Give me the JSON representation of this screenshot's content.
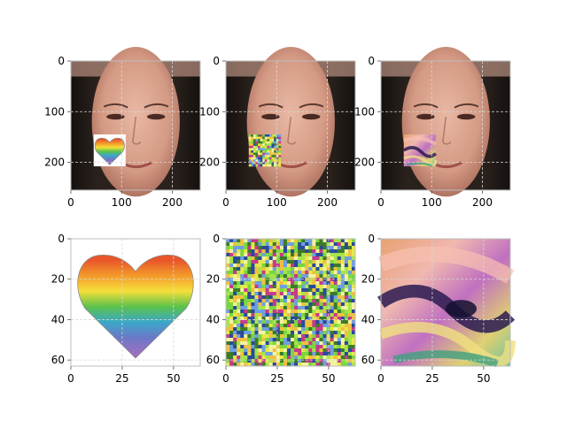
{
  "chart_data": [
    {
      "type": "image",
      "content": "face photo with rainbow heart patch",
      "xlim": [
        0,
        255
      ],
      "ylim": [
        255,
        0
      ],
      "xticks": [
        "0",
        "100",
        "200"
      ],
      "yticks": [
        "0",
        "100",
        "200"
      ],
      "patch": {
        "kind": "rainbow-heart",
        "x_range": [
          45,
          108
        ],
        "y_range": [
          145,
          208
        ]
      },
      "grid": true
    },
    {
      "type": "image",
      "content": "face photo with random-noise patch",
      "xlim": [
        0,
        255
      ],
      "ylim": [
        255,
        0
      ],
      "xticks": [
        "0",
        "100",
        "200"
      ],
      "yticks": [
        "0",
        "100",
        "200"
      ],
      "patch": {
        "kind": "noise",
        "x_range": [
          45,
          108
        ],
        "y_range": [
          145,
          208
        ]
      },
      "grid": true
    },
    {
      "type": "image",
      "content": "face photo with optimized adversarial patch",
      "xlim": [
        0,
        255
      ],
      "ylim": [
        255,
        0
      ],
      "xticks": [
        "0",
        "100",
        "200"
      ],
      "yticks": [
        "0",
        "100",
        "200"
      ],
      "patch": {
        "kind": "swirl",
        "x_range": [
          45,
          108
        ],
        "y_range": [
          145,
          208
        ]
      },
      "grid": true
    },
    {
      "type": "image",
      "content": "rainbow heart patch",
      "xlim": [
        0,
        63
      ],
      "ylim": [
        63,
        0
      ],
      "xticks": [
        "0",
        "25",
        "50"
      ],
      "yticks": [
        "0",
        "20",
        "40",
        "60"
      ],
      "grid": true
    },
    {
      "type": "image",
      "content": "random noise patch",
      "xlim": [
        0,
        63
      ],
      "ylim": [
        63,
        0
      ],
      "xticks": [
        "0",
        "25",
        "50"
      ],
      "yticks": [
        "0",
        "20",
        "40",
        "60"
      ],
      "grid": true
    },
    {
      "type": "image",
      "content": "optimized swirl patch",
      "xlim": [
        0,
        63
      ],
      "ylim": [
        63,
        0
      ],
      "xticks": [
        "0",
        "25",
        "50"
      ],
      "yticks": [
        "0",
        "20",
        "40",
        "60"
      ],
      "grid": true
    }
  ],
  "colors": {
    "rainbow": [
      "#e8552a",
      "#f39a2b",
      "#f6df3a",
      "#5cc24a",
      "#3aa8c8",
      "#6b78c8",
      "#9b6fc0"
    ],
    "noise": [
      "#7ad640",
      "#a6e54a",
      "#e6e84a",
      "#3c7a2a",
      "#c63a8a",
      "#6f9fe0",
      "#f0c040",
      "#2a4a9a",
      "#f4f4a0"
    ],
    "hair": "#1e1a18",
    "skin": "#d9a08a"
  }
}
